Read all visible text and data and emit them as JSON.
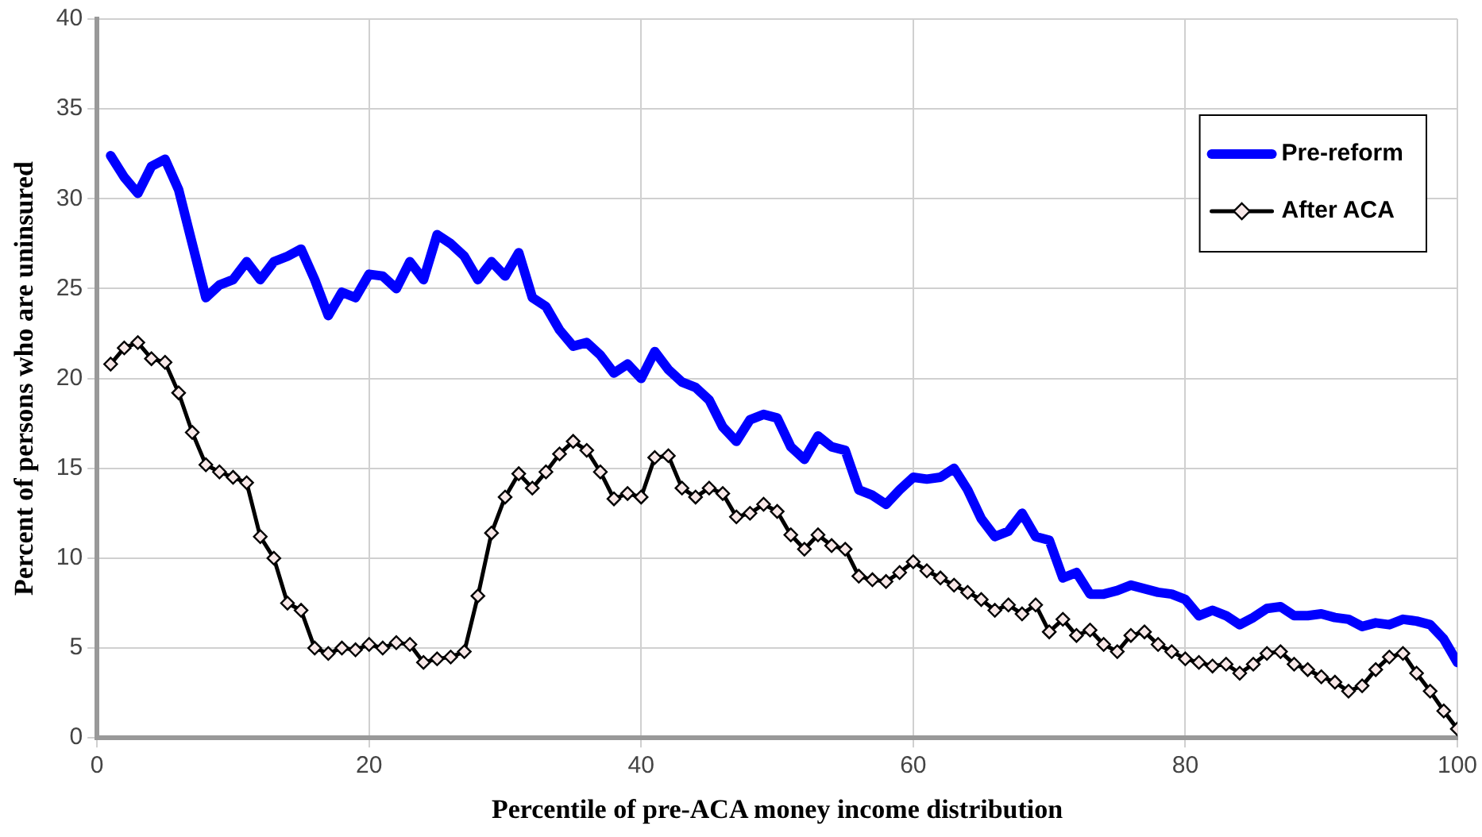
{
  "chart_data": {
    "type": "line",
    "xlabel": "Percentile of pre-ACA money income distribution",
    "ylabel": "Percent of persons who are uninsured",
    "x": [
      1,
      2,
      3,
      4,
      5,
      6,
      7,
      8,
      9,
      10,
      11,
      12,
      13,
      14,
      15,
      16,
      17,
      18,
      19,
      20,
      21,
      22,
      23,
      24,
      25,
      26,
      27,
      28,
      29,
      30,
      31,
      32,
      33,
      34,
      35,
      36,
      37,
      38,
      39,
      40,
      41,
      42,
      43,
      44,
      45,
      46,
      47,
      48,
      49,
      50,
      51,
      52,
      53,
      54,
      55,
      56,
      57,
      58,
      59,
      60,
      61,
      62,
      63,
      64,
      65,
      66,
      67,
      68,
      69,
      70,
      71,
      72,
      73,
      74,
      75,
      76,
      77,
      78,
      79,
      80,
      81,
      82,
      83,
      84,
      85,
      86,
      87,
      88,
      89,
      90,
      91,
      92,
      93,
      94,
      95,
      96,
      97,
      98,
      99,
      100
    ],
    "series": [
      {
        "name": "Pre-reform",
        "color": "#0000ff",
        "marker": "none",
        "values": [
          32.4,
          31.2,
          30.3,
          31.8,
          32.2,
          30.5,
          27.5,
          24.5,
          25.2,
          25.5,
          26.5,
          25.5,
          26.5,
          26.8,
          27.2,
          25.5,
          23.5,
          24.8,
          24.5,
          25.8,
          25.7,
          25.0,
          26.5,
          25.5,
          28.0,
          27.5,
          26.8,
          25.5,
          26.5,
          25.7,
          27.0,
          24.5,
          24.0,
          22.7,
          21.8,
          22.0,
          21.3,
          20.3,
          20.8,
          20.0,
          21.5,
          20.5,
          19.8,
          19.5,
          18.8,
          17.3,
          16.5,
          17.7,
          18.0,
          17.8,
          16.2,
          15.5,
          16.8,
          16.2,
          16.0,
          13.8,
          13.5,
          13.0,
          13.8,
          14.5,
          14.4,
          14.5,
          15.0,
          13.8,
          12.2,
          11.2,
          11.5,
          12.5,
          11.2,
          11.0,
          8.9,
          9.2,
          8.0,
          8.0,
          8.2,
          8.5,
          8.3,
          8.1,
          8.0,
          7.7,
          6.8,
          7.1,
          6.8,
          6.3,
          6.7,
          7.2,
          7.3,
          6.8,
          6.8,
          6.9,
          6.7,
          6.6,
          6.2,
          6.4,
          6.3,
          6.6,
          6.5,
          6.3,
          5.5,
          4.2
        ]
      },
      {
        "name": "After ACA",
        "color": "#000000",
        "marker": "diamond",
        "values": [
          20.8,
          21.7,
          22.0,
          21.1,
          20.9,
          19.2,
          17.0,
          15.2,
          14.8,
          14.5,
          14.2,
          11.2,
          10.0,
          7.5,
          7.1,
          5.0,
          4.7,
          5.0,
          4.9,
          5.2,
          5.0,
          5.3,
          5.2,
          4.2,
          4.4,
          4.5,
          4.8,
          7.9,
          11.4,
          13.4,
          14.7,
          13.9,
          14.8,
          15.8,
          16.5,
          16.0,
          14.8,
          13.3,
          13.6,
          13.4,
          15.6,
          15.7,
          13.9,
          13.4,
          13.9,
          13.6,
          12.3,
          12.5,
          13.0,
          12.6,
          11.3,
          10.5,
          11.3,
          10.7,
          10.5,
          9.0,
          8.8,
          8.7,
          9.2,
          9.8,
          9.3,
          8.9,
          8.5,
          8.1,
          7.7,
          7.1,
          7.4,
          6.9,
          7.4,
          5.9,
          6.6,
          5.7,
          6.0,
          5.2,
          4.8,
          5.7,
          5.9,
          5.2,
          4.8,
          4.4,
          4.2,
          4.0,
          4.1,
          3.6,
          4.1,
          4.7,
          4.8,
          4.1,
          3.8,
          3.4,
          3.1,
          2.6,
          2.9,
          3.8,
          4.5,
          4.7,
          3.6,
          2.6,
          1.5,
          0.5
        ]
      }
    ],
    "xlim": [
      0,
      100
    ],
    "xticks": [
      0,
      20,
      40,
      60,
      80,
      100
    ],
    "ylim": [
      0,
      40
    ],
    "yticks": [
      0,
      5,
      10,
      15,
      20,
      25,
      30,
      35,
      40
    ],
    "grid": true,
    "legend": "top right",
    "line_style": "solid"
  }
}
